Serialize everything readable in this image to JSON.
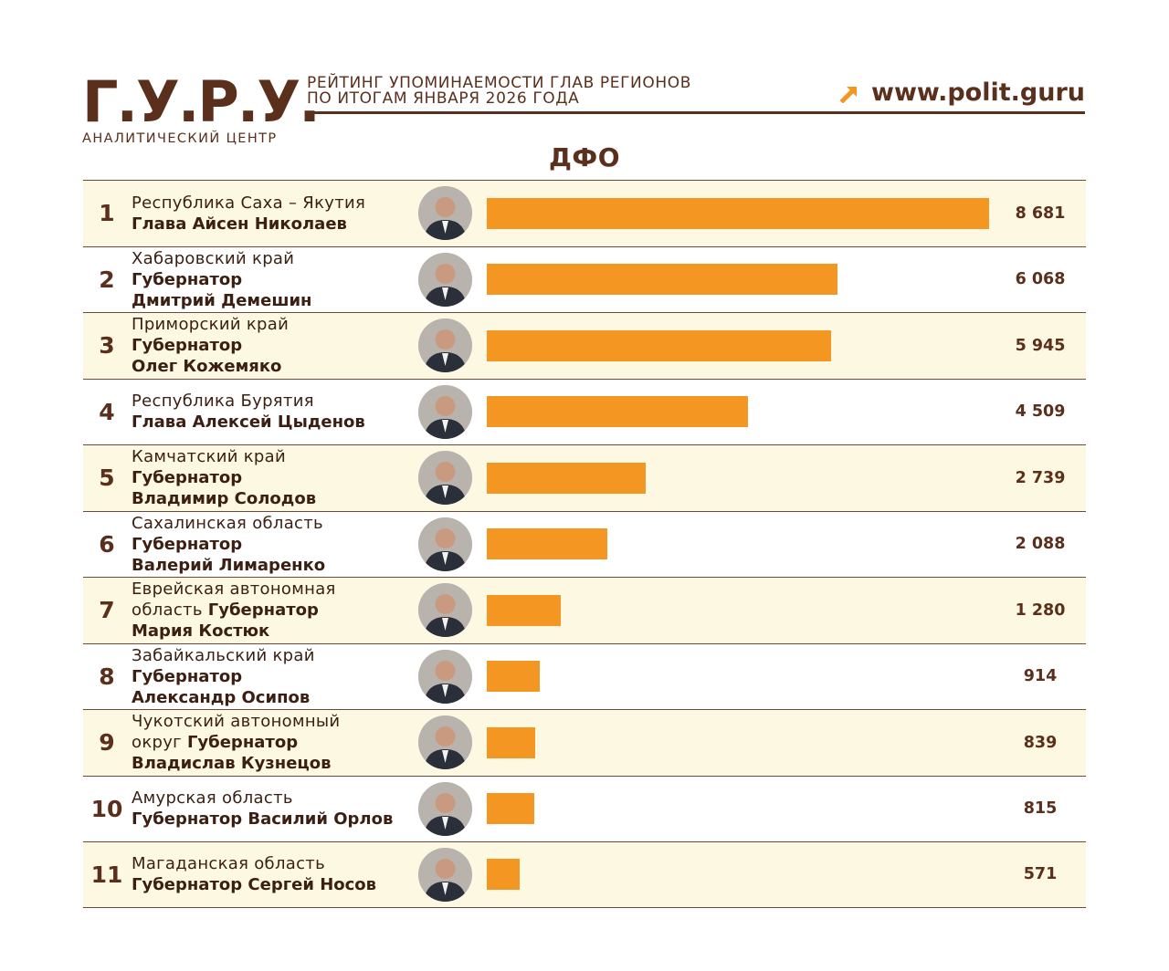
{
  "brand": {
    "logo_text": "Г.У.Р.У.",
    "logo_subtitle": "АНАЛИТИЧЕСКИЙ ЦЕНТР",
    "headline_line1": "РЕЙТИНГ УПОМИНАЕМОСТИ ГЛАВ РЕГИОНОВ",
    "headline_line2": "ПО ИТОГАМ ЯНВАРЯ 2026 ГОДА",
    "site_url": "www.polit.guru",
    "colors": {
      "brown": "#5a2f1c",
      "orange": "#f49722",
      "row_alt": "#fdf8e1"
    }
  },
  "region_title": "ДФО",
  "chart_data": {
    "type": "bar",
    "orientation": "horizontal",
    "title": "ДФО",
    "categories": [
      "Республика Саха – Якутия Глава Айсен Николаев",
      "Хабаровский край Губернатор Дмитрий Демешин",
      "Приморский край Губернатор Олег Кожемяко",
      "Республика Бурятия Глава Алексей Цыденов",
      "Камчатский край Губернатор Владимир Солодов",
      "Сахалинская область Губернатор Валерий Лимаренко",
      "Еврейская автономная область Губернатор Мария Костюк",
      "Забайкальский край Губернатор Александр Осипов",
      "Чукотский автономный округ Губернатор Владислав Кузнецов",
      "Амурская область Губернатор Василий Орлов",
      "Магаданская область Губернатор Сергей Носов"
    ],
    "values": [
      8681,
      6068,
      5945,
      4509,
      2739,
      2088,
      1280,
      914,
      839,
      815,
      571
    ],
    "xlim": [
      0,
      8681
    ],
    "bar_color": "#f49722",
    "grid": false
  },
  "rows": [
    {
      "rank": "1",
      "region": "Республика Саха – Якутия",
      "inline_title": "",
      "title": "Глава Айсен Николаев",
      "name": "",
      "value": "8 681",
      "amount": 8681
    },
    {
      "rank": "2",
      "region": "Хабаровский край",
      "inline_title": "",
      "title": "Губернатор",
      "name": "Дмитрий Демешин",
      "value": "6 068",
      "amount": 6068
    },
    {
      "rank": "3",
      "region": "Приморский край",
      "inline_title": "",
      "title": "Губернатор",
      "name": "Олег Кожемяко",
      "value": "5 945",
      "amount": 5945
    },
    {
      "rank": "4",
      "region": "Республика Бурятия",
      "inline_title": "",
      "title": "Глава Алексей Цыденов",
      "name": "",
      "value": "4 509",
      "amount": 4509
    },
    {
      "rank": "5",
      "region": "Камчатский край",
      "inline_title": "",
      "title": "Губернатор",
      "name": "Владимир Солодов",
      "value": "2 739",
      "amount": 2739
    },
    {
      "rank": "6",
      "region": "Сахалинская область",
      "inline_title": "",
      "title": "Губернатор",
      "name": "Валерий Лимаренко",
      "value": "2 088",
      "amount": 2088
    },
    {
      "rank": "7",
      "region": "Еврейская автономная",
      "region2": "область ",
      "inline_title": "Губернатор",
      "title": "",
      "name": "Мария Костюк",
      "value": "1 280",
      "amount": 1280
    },
    {
      "rank": "8",
      "region": "Забайкальский край",
      "inline_title": "",
      "title": "Губернатор",
      "name": "Александр Осипов",
      "value": "914",
      "amount": 914
    },
    {
      "rank": "9",
      "region": "Чукотский автономный",
      "region2": "округ ",
      "inline_title": "Губернатор",
      "title": "",
      "name": "Владислав Кузнецов",
      "value": "839",
      "amount": 839
    },
    {
      "rank": "10",
      "region": "Амурская область",
      "inline_title": "",
      "title": "Губернатор Василий Орлов",
      "name": "",
      "value": "815",
      "amount": 815
    },
    {
      "rank": "11",
      "region": "Магаданская область",
      "inline_title": "",
      "title": "Губернатор Сергей Носов",
      "name": "",
      "value": "571",
      "amount": 571
    }
  ]
}
